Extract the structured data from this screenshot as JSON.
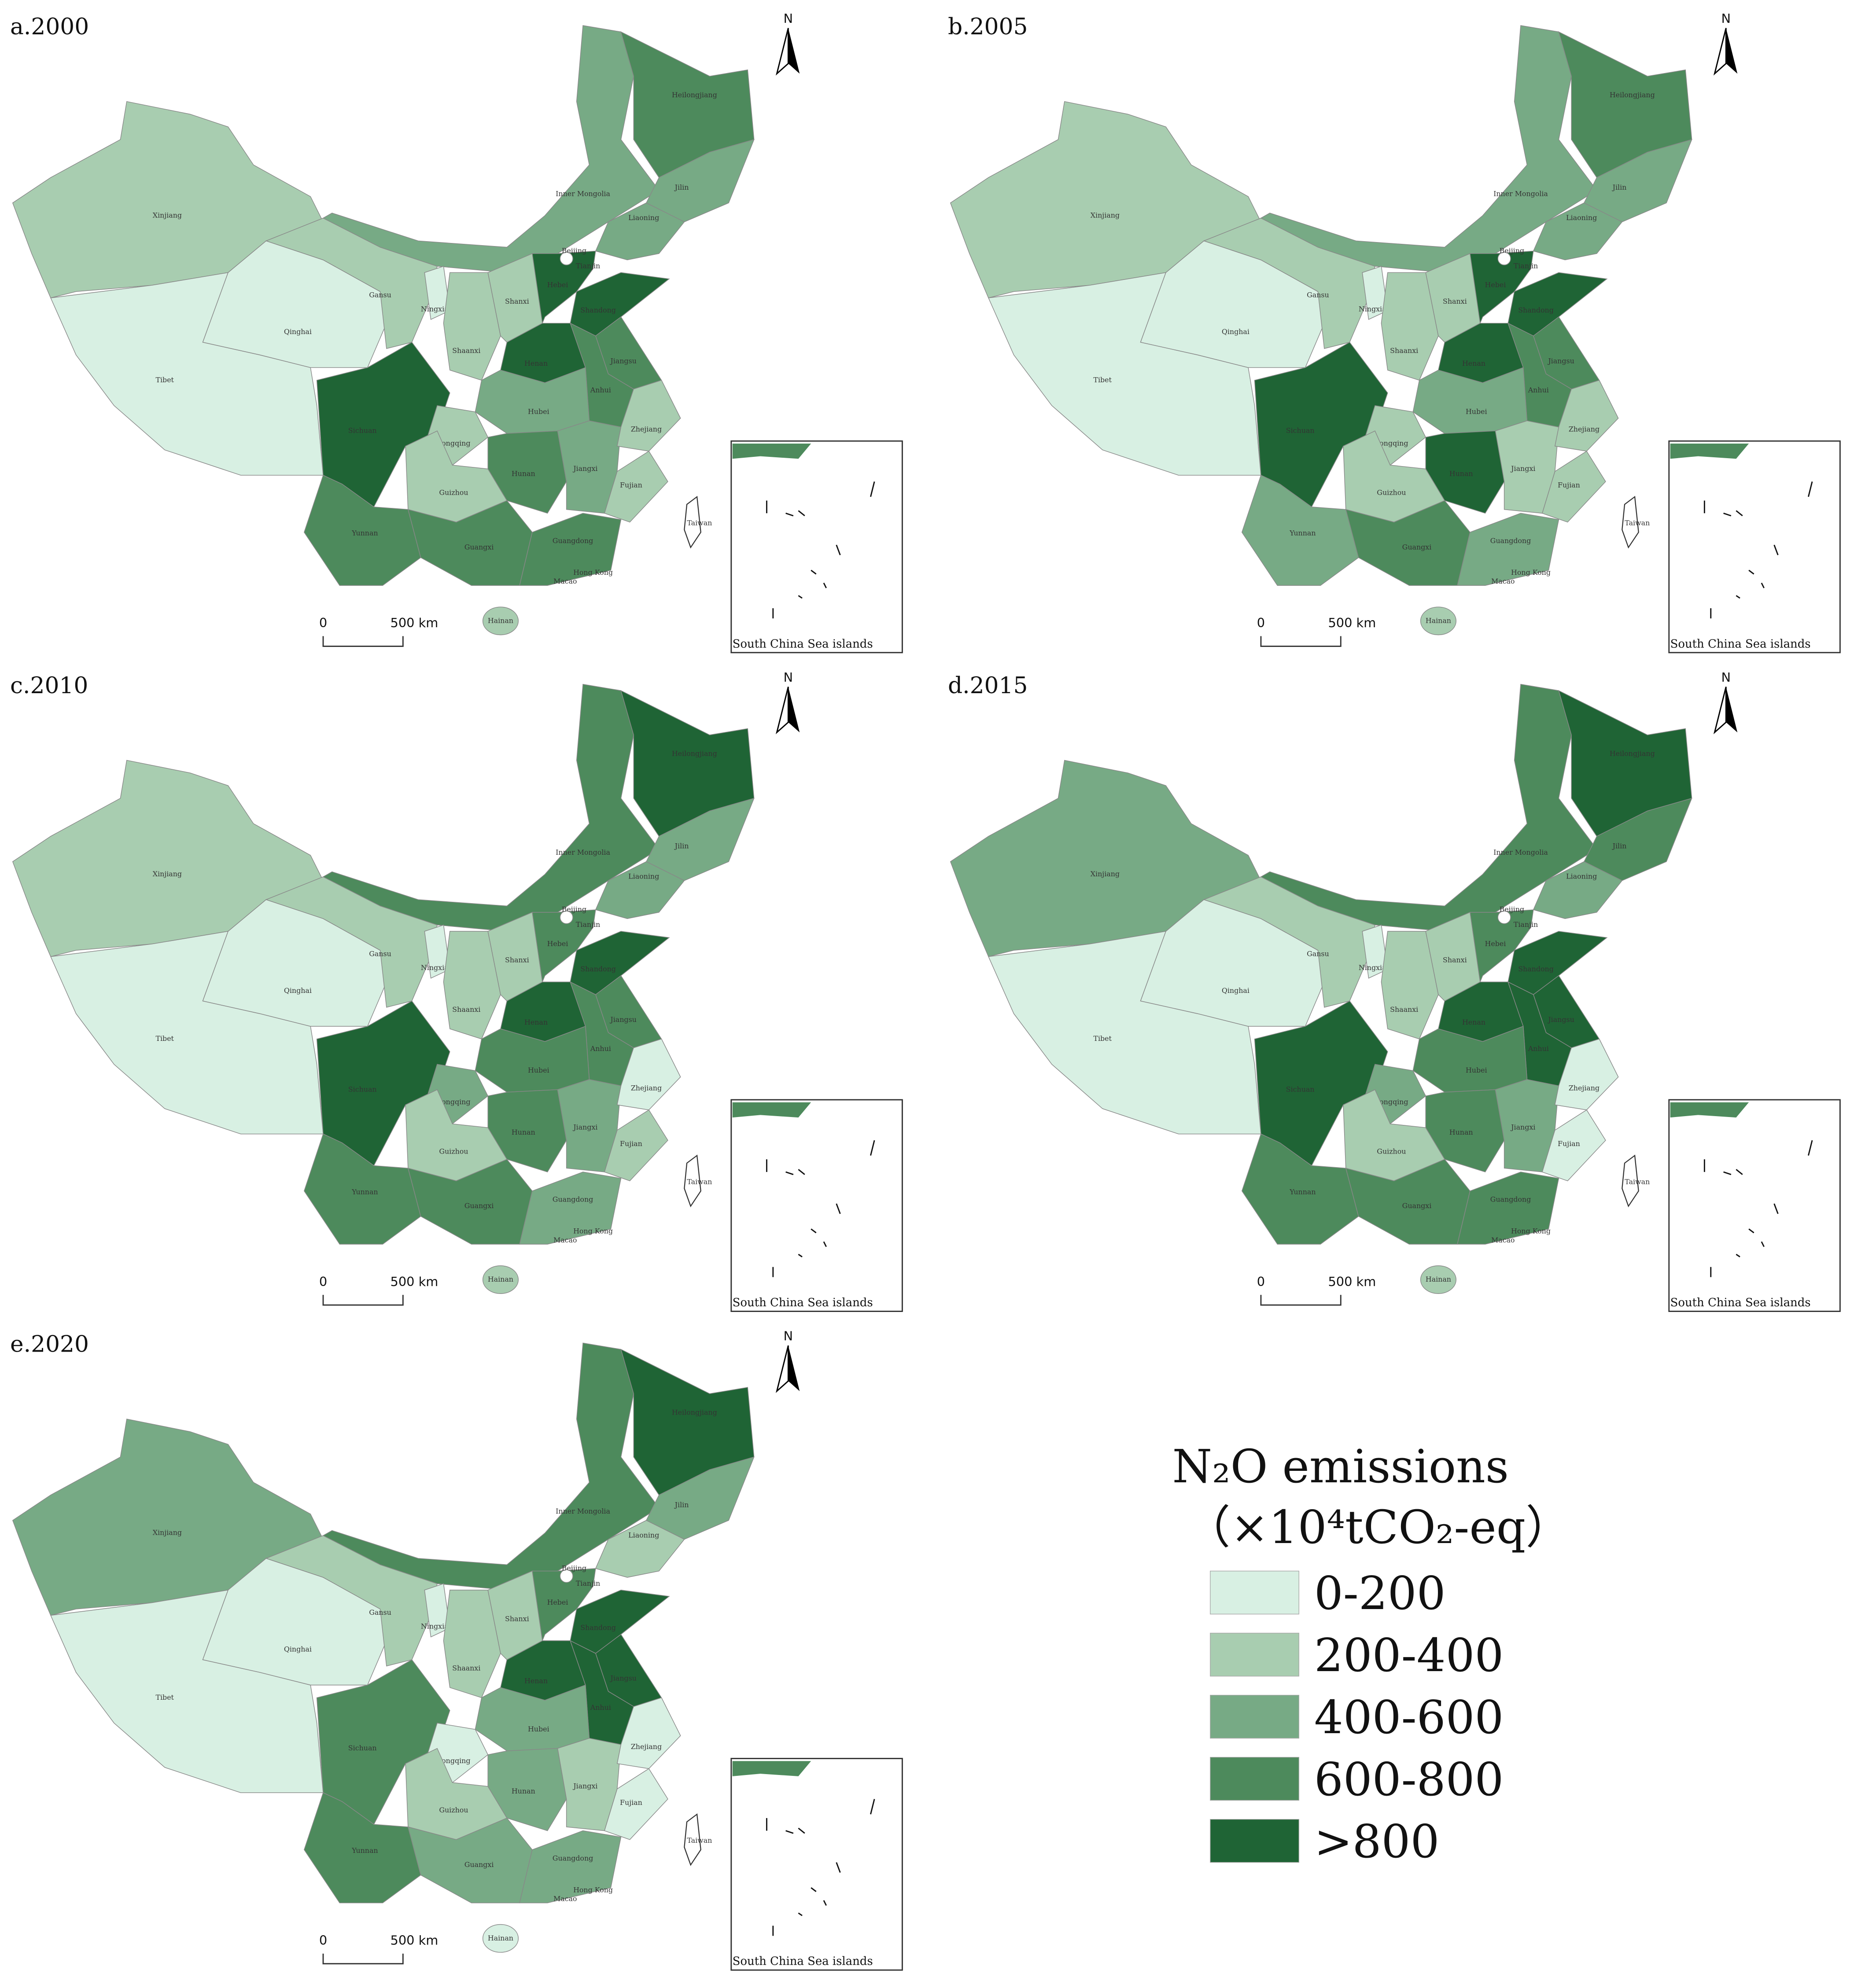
{
  "north": "N",
  "scale_zero": "0",
  "scale_label": "500 km",
  "inset_label": "South China Sea islands",
  "extra_labels": [
    "Beijing",
    "Tianjin",
    "Hong Kong",
    "Macao",
    "Taiwan"
  ],
  "provinces": [
    "Xinjiang",
    "Tibet",
    "Qinghai",
    "Gansu",
    "Inner Mongolia",
    "Heilongjiang",
    "Jilin",
    "Liaoning",
    "Ningxia",
    "Shaanxi",
    "Shanxi",
    "Hebei",
    "Shandong",
    "Henan",
    "Jiangsu",
    "Anhui",
    "Hubei",
    "Sichuan",
    "Chongqing",
    "Guizhou",
    "Yunnan",
    "Guangxi",
    "Guangdong",
    "Hunan",
    "Jiangxi",
    "Fujian",
    "Zhejiang",
    "Hainan"
  ],
  "legend": {
    "title": "N₂O emissions",
    "unit": "（×10⁴tCO₂-eq）",
    "classes": [
      {
        "label": "0-200",
        "color": "#d8f0e3"
      },
      {
        "label": "200-400",
        "color": "#a8cdb0"
      },
      {
        "label": "400-600",
        "color": "#77aa85"
      },
      {
        "label": "600-800",
        "color": "#4d8a5c"
      },
      {
        "label": ">800",
        "color": "#1f6435"
      }
    ]
  },
  "panels": [
    {
      "label": "a.2000",
      "classes": [
        "200-400",
        "0-200",
        "0-200",
        "200-400",
        "400-600",
        "600-800",
        "400-600",
        "400-600",
        "0-200",
        "200-400",
        "200-400",
        ">800",
        ">800",
        ">800",
        "600-800",
        "600-800",
        "400-600",
        ">800",
        "200-400",
        "200-400",
        "600-800",
        "600-800",
        "600-800",
        "600-800",
        "400-600",
        "200-400",
        "200-400",
        "200-400"
      ]
    },
    {
      "label": "b.2005",
      "classes": [
        "200-400",
        "0-200",
        "0-200",
        "200-400",
        "400-600",
        "600-800",
        "400-600",
        "400-600",
        "0-200",
        "200-400",
        "200-400",
        ">800",
        ">800",
        ">800",
        "600-800",
        "600-800",
        "400-600",
        ">800",
        "200-400",
        "200-400",
        "400-600",
        "600-800",
        "400-600",
        ">800",
        "200-400",
        "200-400",
        "200-400",
        "200-400"
      ]
    },
    {
      "label": "c.2010",
      "classes": [
        "200-400",
        "0-200",
        "0-200",
        "200-400",
        "600-800",
        ">800",
        "400-600",
        "400-600",
        "0-200",
        "200-400",
        "200-400",
        "600-800",
        ">800",
        ">800",
        "600-800",
        "600-800",
        "600-800",
        ">800",
        "400-600",
        "200-400",
        "600-800",
        "600-800",
        "400-600",
        "600-800",
        "400-600",
        "200-400",
        "0-200",
        "200-400"
      ]
    },
    {
      "label": "d.2015",
      "classes": [
        "400-600",
        "0-200",
        "0-200",
        "200-400",
        "600-800",
        ">800",
        "600-800",
        "400-600",
        "0-200",
        "200-400",
        "200-400",
        "600-800",
        ">800",
        ">800",
        ">800",
        ">800",
        "600-800",
        ">800",
        "400-600",
        "200-400",
        "600-800",
        "600-800",
        "600-800",
        "600-800",
        "400-600",
        "0-200",
        "0-200",
        "200-400"
      ]
    },
    {
      "label": "e.2020",
      "classes": [
        "400-600",
        "0-200",
        "0-200",
        "200-400",
        "600-800",
        ">800",
        "400-600",
        "200-400",
        "0-200",
        "200-400",
        "200-400",
        "600-800",
        ">800",
        ">800",
        ">800",
        ">800",
        "400-600",
        "600-800",
        "0-200",
        "200-400",
        "600-800",
        "400-600",
        "400-600",
        "400-600",
        "200-400",
        "0-200",
        "0-200",
        "0-200"
      ]
    }
  ]
}
